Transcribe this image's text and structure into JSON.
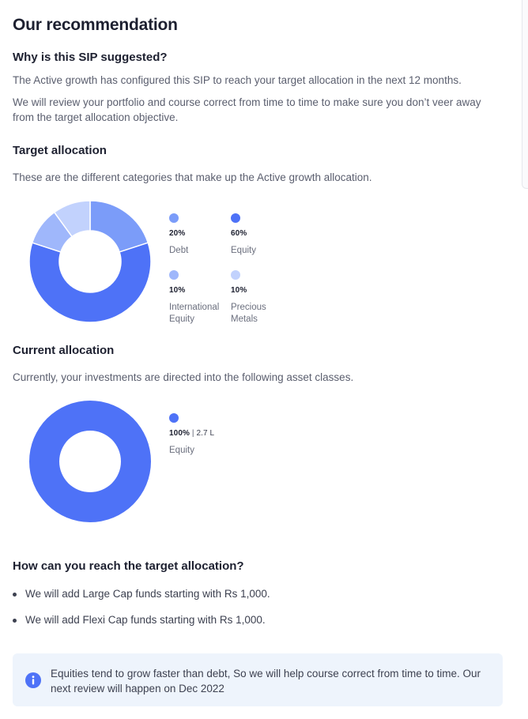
{
  "page": {
    "title": "Our recommendation"
  },
  "why": {
    "heading": "Why is this SIP suggested?",
    "paragraph1": "The Active growth has configured this SIP to reach your target allocation in the next 12 months.",
    "paragraph2": "We will review your portfolio and course correct from time to time to make sure you don’t veer away from the target allocation objective."
  },
  "target": {
    "heading": "Target allocation",
    "description": "These are the different categories that make up the Active growth allocation.",
    "legend": [
      {
        "value": "20%",
        "label": "Debt",
        "color": "#7b9cf9"
      },
      {
        "value": "60%",
        "label": "Equity",
        "color": "#4e72f7"
      },
      {
        "value": "10%",
        "label": "International Equity",
        "color": "#9fb7fb"
      },
      {
        "value": "10%",
        "label": "Precious Metals",
        "color": "#c2d2fd"
      }
    ]
  },
  "chart_data": [
    {
      "type": "pie",
      "categories": [
        "Debt",
        "Equity",
        "International Equity",
        "Precious Metals"
      ],
      "values": [
        20,
        60,
        10,
        10
      ],
      "colors": [
        "#7b9cf9",
        "#4e72f7",
        "#9fb7fb",
        "#c2d2fd"
      ]
    },
    {
      "type": "pie",
      "categories": [
        "Equity"
      ],
      "values": [
        100
      ],
      "colors": [
        "#4e72f7"
      ]
    }
  ],
  "current": {
    "heading": "Current allocation",
    "description": "Currently, your investments are directed into the following asset classes.",
    "legend": [
      {
        "value": "100%",
        "amount": "2.7 L",
        "label": "Equity",
        "color": "#4e72f7"
      }
    ]
  },
  "reach": {
    "heading": "How can you reach the target allocation?",
    "items": [
      "We will add Large Cap funds starting with Rs 1,000.",
      "We will add Flexi Cap funds starting with Rs 1,000."
    ]
  },
  "info": {
    "icon": "info-icon",
    "text": "Equities tend to grow faster than debt, So we will help course correct from time to time. Our next review will happen on Dec 2022",
    "icon_color": "#4e72f7"
  }
}
